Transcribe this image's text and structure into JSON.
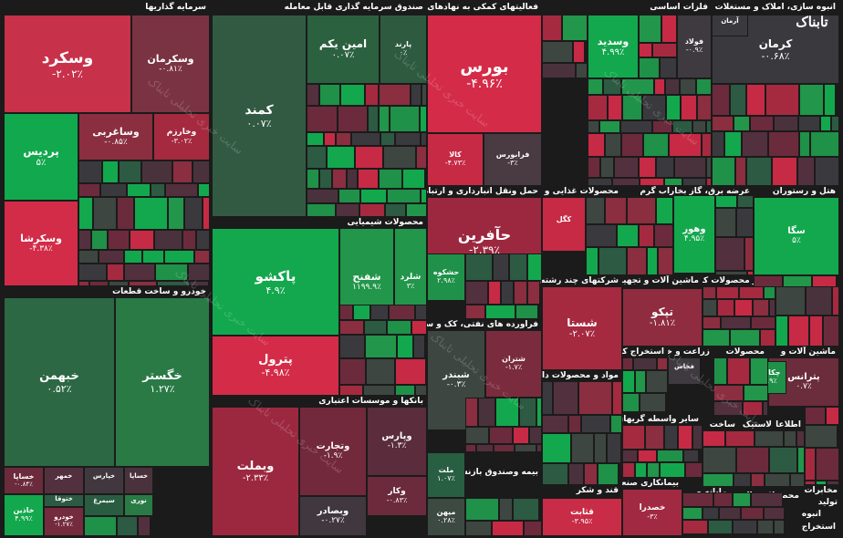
{
  "brand": {
    "logo_text": "تابناک"
  },
  "watermark_text": "سایت خبری تحلیلی تابناک",
  "colors": {
    "background": "#1b1b1b"
  },
  "sectors": [
    "سرمایه گذاریها",
    "صندوق سرمایه گذاری قابل معامله",
    "فعالیتهای کمکی به نهادهای مالی واسط",
    "فلزات اساسی",
    "انبوه سازی، املاک و مستغلات",
    "خودرو و ساخت قطعات",
    "محصولات شیمیایی",
    "حمل ونقل انبارداری و ارتباطات",
    "محصولات غذایی و آشامیدنی به جز قند",
    "عرضه برق، گاز بخاراب گرم",
    "هتل و رستوران",
    "فراورده های نفتی، کک و سوخت",
    "شرکتهای چند رشته ای",
    "ماشین آلات و تجهیزات",
    "سایر محصولات کانی",
    "سیمان، آهک و گچ",
    "بانکها و موسسات اعتباری",
    "مواد و محصولات دارویی",
    "استخراج کانه های",
    "زراعت و خدمات",
    "محصولات",
    "ماشین آلات و",
    "بیمه وصندوق بازنشستگی به جزتامین",
    "سایر واسطه گریهای",
    "ساخت",
    "لاستیک و",
    "قند و شکر",
    "بیمانکاری صنعتی",
    "استخراج",
    "اطلاعات و",
    "محصولات",
    "فعالیت",
    "مخابرات",
    "خدمات",
    "تولید",
    "انبوه",
    "استخراج",
    "رایانه و",
    "انتشار",
    "کاشی و"
  ],
  "tiles": [
    {
      "sym": "وسکرد",
      "pct": "-۲.۰۲٪",
      "c": "#c8314a"
    },
    {
      "sym": "وسکرمان",
      "pct": "-۰.۸۱٪",
      "c": "#7a3342"
    },
    {
      "sym": "پردیس",
      "pct": "۵٪",
      "c": "#12a84d"
    },
    {
      "sym": "وساغربی",
      "pct": "-۰.۸۵٪",
      "c": "#8a2e40"
    },
    {
      "sym": "وخارزم",
      "pct": "-۳.۰۲٪",
      "c": "#a52a40"
    },
    {
      "sym": "وسکرشا",
      "pct": "-۴.۳۸٪",
      "c": "#d22c48"
    },
    {
      "sym": "کمند",
      "pct": "۰.۰۷٪",
      "c": "#325a43"
    },
    {
      "sym": "امین یکم",
      "pct": "۰.۰۷٪",
      "c": "#2c6140"
    },
    {
      "sym": "پارند",
      "pct": "۰٪",
      "c": "#2e5a40"
    },
    {
      "sym": "بورس",
      "pct": "-۴.۹۶٪",
      "c": "#d42c48"
    },
    {
      "sym": "کالا",
      "pct": "-۴.۷۳٪",
      "c": "#c62a45"
    },
    {
      "sym": "فرابورس",
      "pct": "-۳٪",
      "c": "#4a3a42"
    },
    {
      "sym": "وسدید",
      "pct": "۴.۹۹٪",
      "c": "#13a84d"
    },
    {
      "sym": "فولاد",
      "pct": "-۰.۹٪",
      "c": "#3e3a40"
    },
    {
      "sym": "کرمان",
      "pct": "-۰.۶۸٪",
      "c": "#3a3a3e"
    },
    {
      "sym": "خبهمن",
      "pct": "۰.۵۲٪",
      "c": "#2d6844"
    },
    {
      "sym": "خگستر",
      "pct": "۱.۲۷٪",
      "c": "#2a7a46"
    },
    {
      "sym": "پاکشو",
      "pct": "۴.۹٪",
      "c": "#13a84d"
    },
    {
      "sym": "شفنح",
      "pct": "۱۱۹۹.۹٪",
      "c": "#22964a"
    },
    {
      "sym": "شلرد",
      "pct": "۳٪",
      "c": "#22964a"
    },
    {
      "sym": "پترول",
      "pct": "-۴.۹۸٪",
      "c": "#d42c48"
    },
    {
      "sym": "حآفرین",
      "pct": "-۲.۳۹٪",
      "c": "#9c2840"
    },
    {
      "sym": "حشکوه",
      "pct": "۲.۹۸٪",
      "c": "#1f9148"
    },
    {
      "sym": "وهور",
      "pct": "۴.۹۵٪",
      "c": "#14a84d"
    },
    {
      "sym": "سگا",
      "pct": "۵٪",
      "c": "#13a84d"
    },
    {
      "sym": "شستا",
      "pct": "-۲.۰۷٪",
      "c": "#a52a40"
    },
    {
      "sym": "تپکو",
      "pct": "-۱.۸۱٪",
      "c": "#8f2c40"
    },
    {
      "sym": "پترانس",
      "pct": "۰.۷٪",
      "c": "#6b2c3c"
    },
    {
      "sym": "شتران",
      "pct": "-۱.۷٪",
      "c": "#7a2c3e"
    },
    {
      "sym": "شبندر",
      "pct": "-۰.۳٪",
      "c": "#3d4640"
    },
    {
      "sym": "وبملت",
      "pct": "-۲.۳۳٪",
      "c": "#9c2840"
    },
    {
      "sym": "وتجارت",
      "pct": "-۱.۹٪",
      "c": "#73293c"
    },
    {
      "sym": "وپارس",
      "pct": "-۱.۳٪",
      "c": "#5a2c3c"
    },
    {
      "sym": "وبصادر",
      "pct": "-۰.۲۷٪",
      "c": "#40383e"
    },
    {
      "sym": "وکار",
      "pct": "-۰.۸۳٪",
      "c": "#6b2b3c"
    },
    {
      "sym": "ملت",
      "pct": "۱.۰۷٪",
      "c": "#285e42"
    },
    {
      "sym": "میهن",
      "pct": "۰.۲۸٪",
      "c": "#3d4a42"
    },
    {
      "sym": "قثابت",
      "pct": "-۳.۹۵٪",
      "c": "#c82c46"
    },
    {
      "sym": "خساپا",
      "pct": "-۰.۸۴٪",
      "c": "#6b2b3c"
    },
    {
      "sym": "خمهر",
      "pct": "",
      "c": "#53303e"
    },
    {
      "sym": "خاذین",
      "pct": "۴.۹۹٪",
      "c": "#13a84d"
    },
    {
      "sym": "خودرو",
      "pct": "-۱.۲۷٪",
      "c": "#752b3e"
    },
    {
      "sym": "خپارس",
      "pct": "",
      "c": "#40383e"
    },
    {
      "sym": "کگل",
      "pct": "",
      "c": "#c62a45"
    },
    {
      "sym": "خساپا",
      "pct": "",
      "c": "#4a323c"
    },
    {
      "sym": "خصدرا",
      "pct": "-۳٪",
      "c": "#a12a42"
    },
    {
      "sym": "فخاس",
      "pct": "",
      "c": "#3e3a40"
    },
    {
      "sym": "چکاوه",
      "pct": "۲.۹٪",
      "c": "#1f9148"
    },
    {
      "sym": "ختوقا",
      "pct": "",
      "c": "#2d5a42"
    },
    {
      "sym": "سیمرغ",
      "pct": "",
      "c": "#2a5c42"
    },
    {
      "sym": "نوری",
      "pct": "",
      "c": "#2a7a46"
    },
    {
      "sym": "آرمان",
      "pct": "",
      "c": "#3a3a3e"
    }
  ]
}
